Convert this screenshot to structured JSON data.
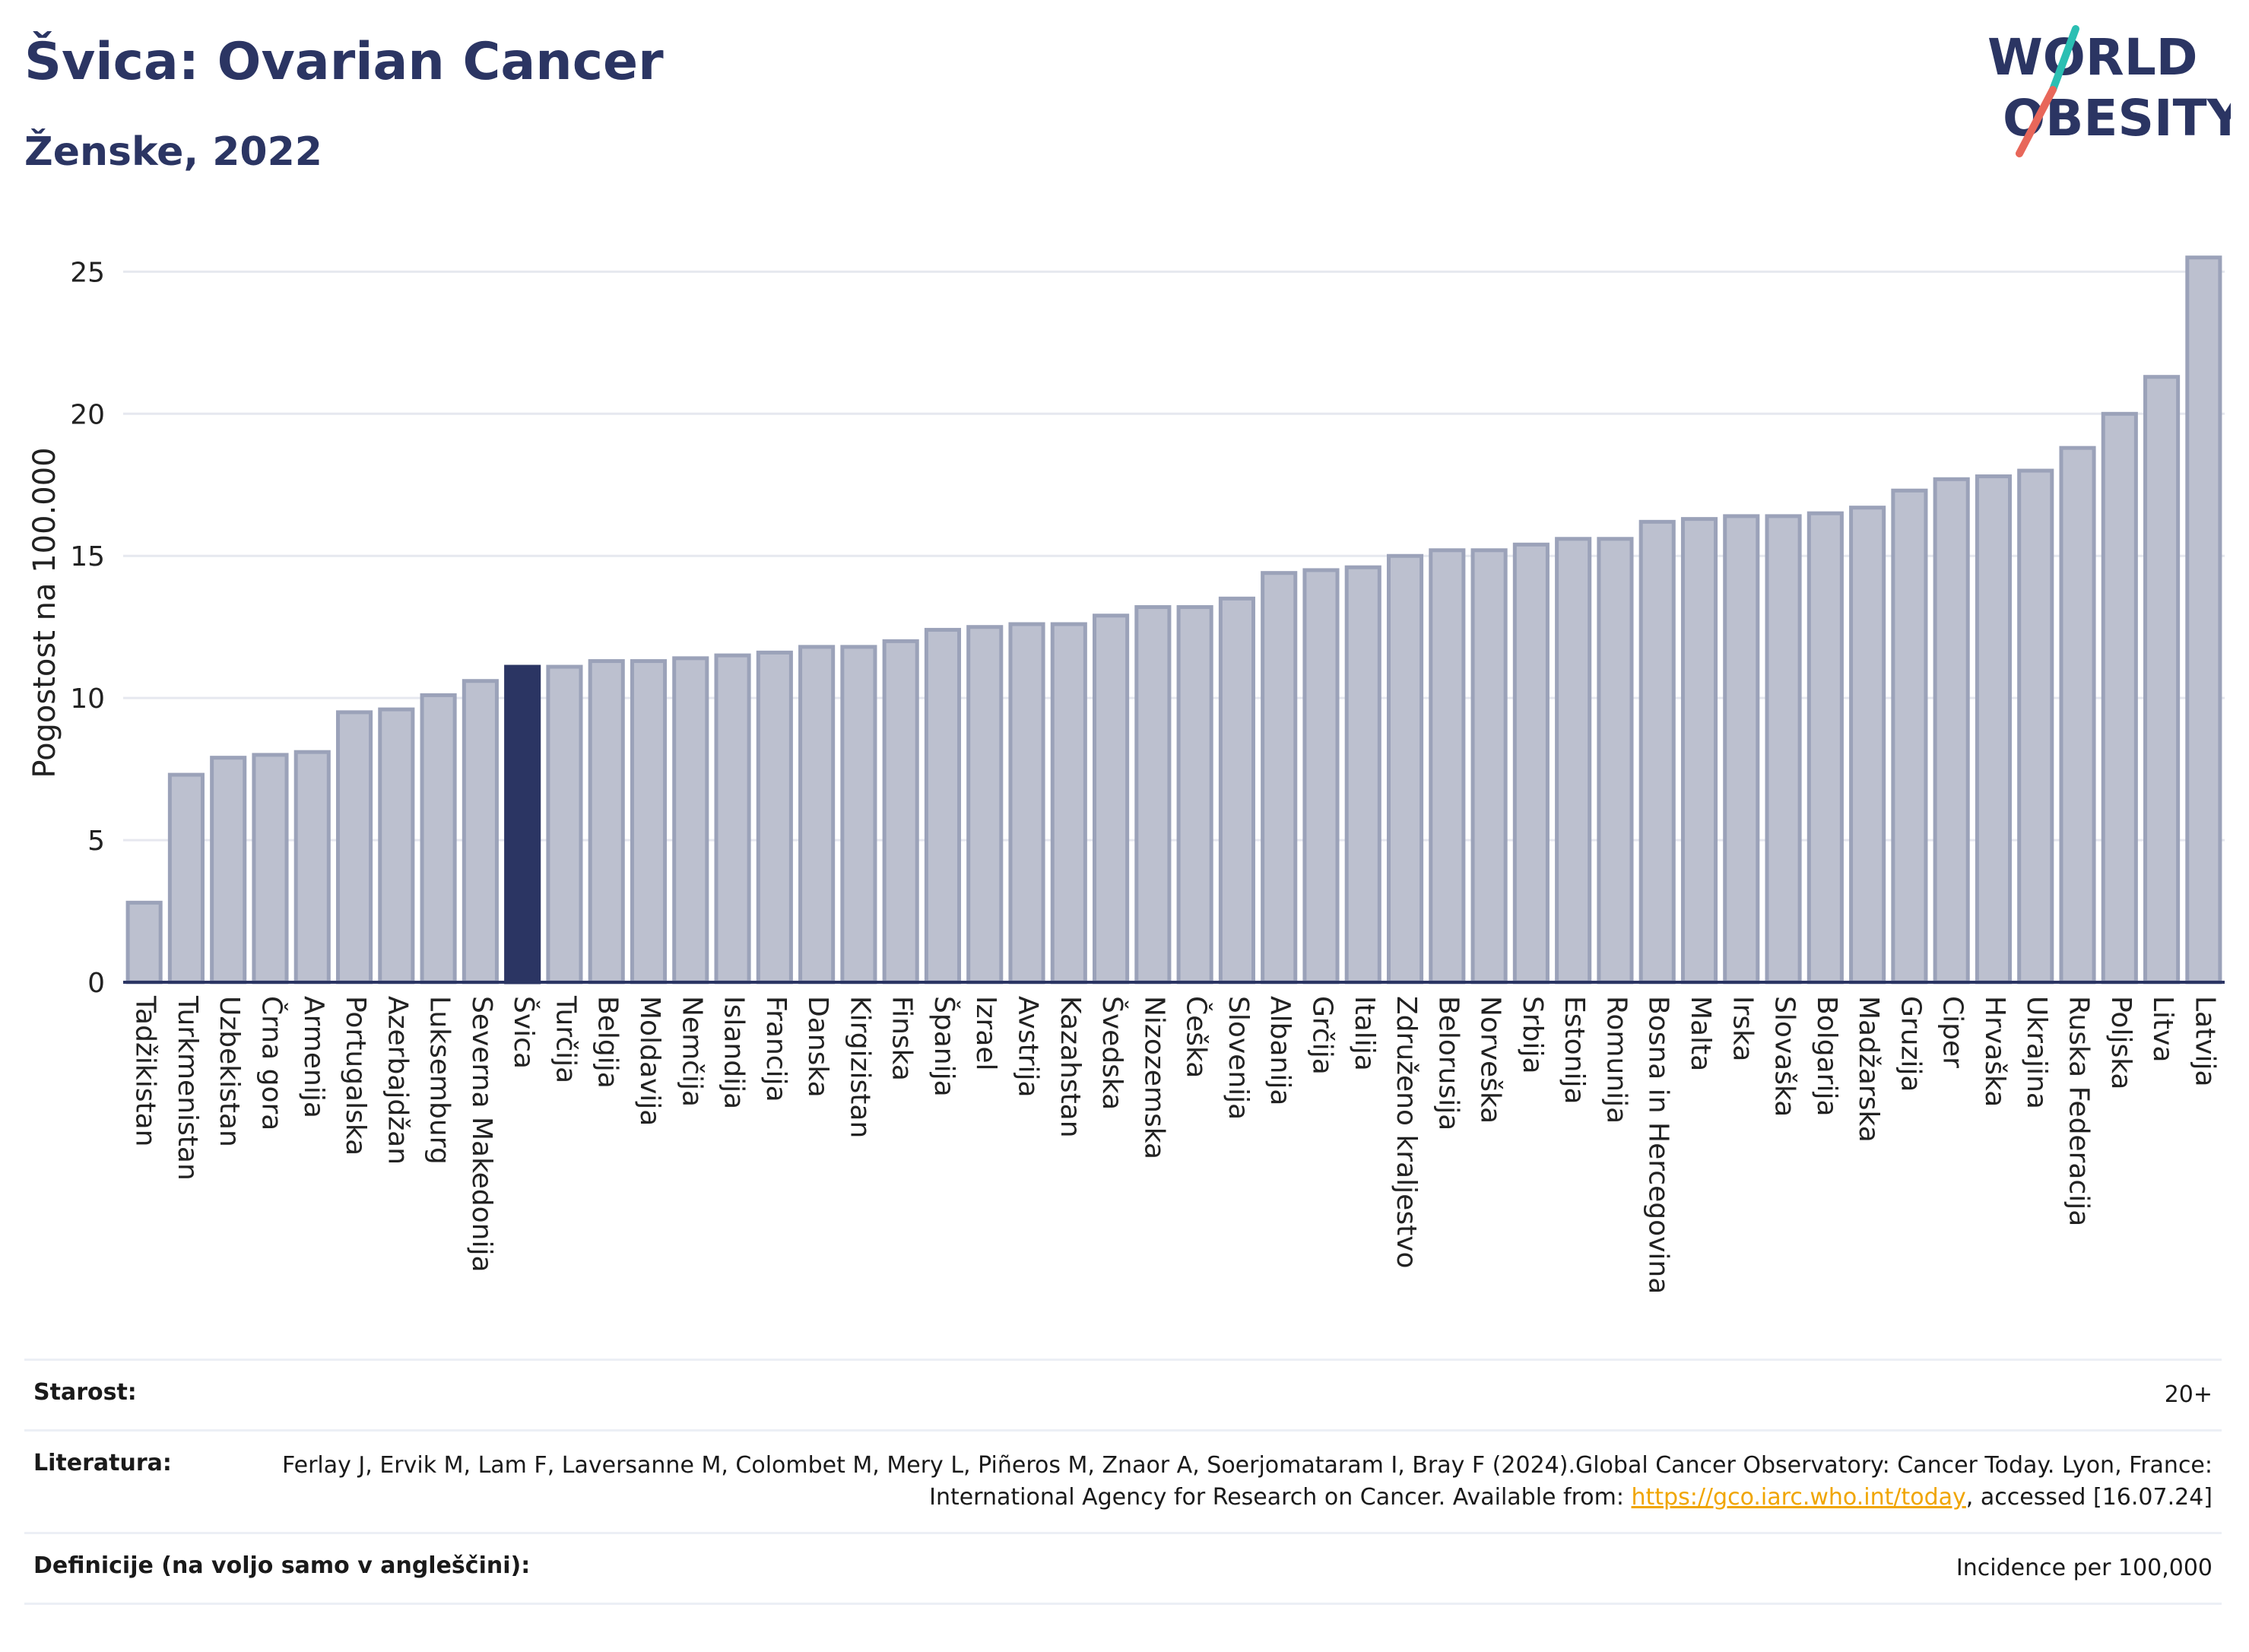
{
  "header": {
    "title": "Švica: Ovarian Cancer",
    "subtitle": "Ženske, 2022"
  },
  "logo": {
    "line1": "WORLD",
    "line2": "OBESITY",
    "colors": {
      "text": "#2b3563",
      "slash_teal": "#2bbfb3",
      "slash_coral": "#e8675a"
    }
  },
  "colors": {
    "bar": "#bcc0cf",
    "bar_border": "#9ba2b9",
    "highlight_bar": "#2b3563",
    "grid": "#e6e8ef",
    "axis": "#2b3563",
    "link": "#f0a500"
  },
  "chart_data": {
    "type": "bar",
    "ylabel": "Pogostost na 100.000",
    "xlabel": "",
    "ylim": [
      0,
      26
    ],
    "yticks": [
      0,
      5,
      10,
      15,
      20,
      25
    ],
    "grid": true,
    "highlight": "Švica",
    "categories": [
      "Tadžikistan",
      "Turkmenistan",
      "Uzbekistan",
      "Črna gora",
      "Armenija",
      "Portugalska",
      "Azerbajdžan",
      "Luksemburg",
      "Severna Makedonija",
      "Švica",
      "Turčija",
      "Belgija",
      "Moldavija",
      "Nemčija",
      "Islandija",
      "Francija",
      "Danska",
      "Kirgizistan",
      "Finska",
      "Španija",
      "Izrael",
      "Avstrija",
      "Kazahstan",
      "Švedska",
      "Nizozemska",
      "Češka",
      "Slovenija",
      "Albanija",
      "Grčija",
      "Italija",
      "Združeno kraljestvo",
      "Belorusija",
      "Norveška",
      "Srbija",
      "Estonija",
      "Romunija",
      "Bosna in Hercegovina",
      "Malta",
      "Irska",
      "Slovaška",
      "Bolgarija",
      "Madžarska",
      "Gruzija",
      "Ciper",
      "Hrvaška",
      "Ukrajina",
      "Ruska Federacija",
      "Poljska",
      "Litva",
      "Latvija"
    ],
    "values": [
      2.8,
      7.3,
      7.9,
      8.0,
      8.1,
      9.5,
      9.6,
      10.1,
      10.6,
      11.1,
      11.1,
      11.3,
      11.3,
      11.4,
      11.5,
      11.6,
      11.8,
      11.8,
      12.0,
      12.4,
      12.5,
      12.6,
      12.6,
      12.9,
      13.2,
      13.2,
      13.5,
      14.4,
      14.5,
      14.6,
      15.0,
      15.2,
      15.2,
      15.4,
      15.6,
      15.6,
      16.2,
      16.3,
      16.4,
      16.4,
      16.5,
      16.7,
      17.3,
      17.7,
      17.8,
      18.0,
      18.8,
      20.0,
      21.3,
      25.5
    ]
  },
  "info": {
    "age_label": "Starost:",
    "age_value": "20+",
    "ref_label": "Literatura:",
    "ref_text_1": "Ferlay J, Ervik M, Lam F, Laversanne M, Colombet M, Mery L, Piñeros M, Znaor A, Soerjomataram I, Bray F (2024).Global Cancer Observatory: Cancer Today. Lyon, France: International Agency for Research on Cancer. Available from: ",
    "ref_link": "https://gco.iarc.who.int/today",
    "ref_text_2": ", accessed [16.07.24]",
    "def_label": "Definicije (na voljo samo v angleščini):",
    "def_value": "Incidence per 100,000"
  }
}
